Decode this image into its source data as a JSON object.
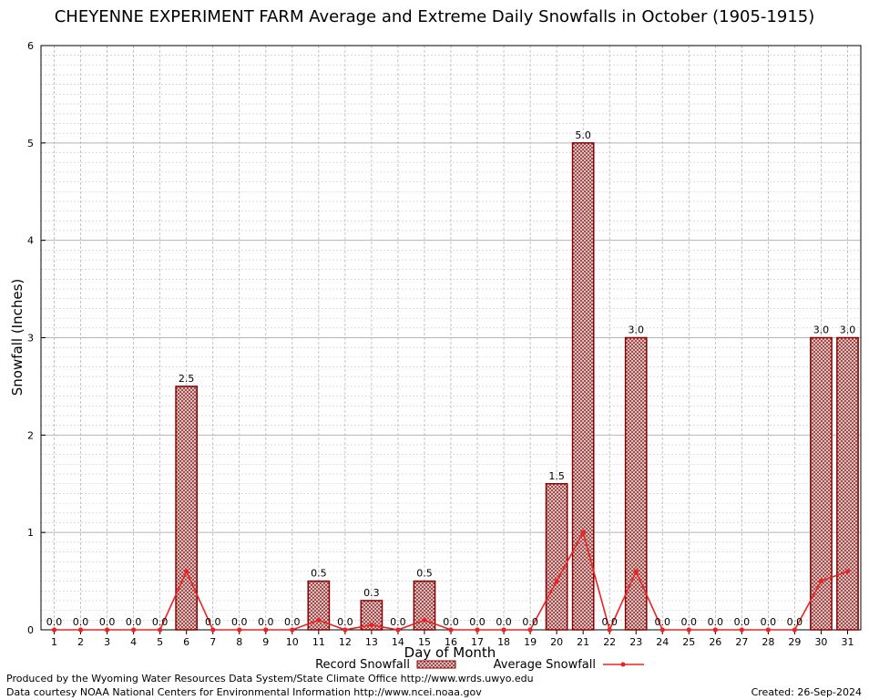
{
  "chart_data": {
    "type": "bar",
    "title": "CHEYENNE EXPERIMENT FARM Average and Extreme Daily Snowfalls in October (1905-1915)",
    "xlabel": "Day of Month",
    "ylabel": "Snowfall (Inches)",
    "ylim": [
      0,
      6
    ],
    "yticks": [
      0,
      1,
      2,
      3,
      4,
      5,
      6
    ],
    "grid": true,
    "legend_position": "bottom",
    "categories": [
      "1",
      "2",
      "3",
      "4",
      "5",
      "6",
      "7",
      "8",
      "9",
      "10",
      "11",
      "12",
      "13",
      "14",
      "15",
      "16",
      "17",
      "18",
      "19",
      "20",
      "21",
      "22",
      "23",
      "24",
      "25",
      "26",
      "27",
      "28",
      "29",
      "30",
      "31"
    ],
    "series": [
      {
        "name": "Record Snowfall",
        "kind": "bar",
        "color": "#8b0000",
        "values": [
          0,
          0,
          0,
          0,
          0,
          2.5,
          0,
          0,
          0,
          0,
          0.5,
          0,
          0.3,
          0,
          0.5,
          0,
          0,
          0,
          0,
          1.5,
          5.0,
          0,
          3.0,
          0,
          0,
          0,
          0,
          0,
          0,
          3.0,
          3.0
        ],
        "labels": [
          "0.0",
          "0.0",
          "0.0",
          "0.0",
          "0.0",
          "2.5",
          "0.0",
          "0.0",
          "0.0",
          "0.0",
          "0.5",
          "0.0",
          "0.3",
          "0.0",
          "0.5",
          "0.0",
          "0.0",
          "0.0",
          "0.0",
          "1.5",
          "5.0",
          "0.0",
          "3.0",
          "0.0",
          "0.0",
          "0.0",
          "0.0",
          "0.0",
          "0.0",
          "3.0",
          "3.0"
        ]
      },
      {
        "name": "Average Snowfall",
        "kind": "line",
        "color": "#ee2222",
        "values": [
          0,
          0,
          0,
          0,
          0,
          0.6,
          0,
          0,
          0,
          0,
          0.1,
          0,
          0.05,
          0,
          0.1,
          0,
          0,
          0,
          0,
          0.5,
          1.0,
          0,
          0.6,
          0,
          0,
          0,
          0,
          0,
          0,
          0.5,
          0.6
        ]
      }
    ]
  },
  "footer": {
    "line1": "Produced by the Wyoming Water Resources Data System/State Climate Office http://www.wrds.uwyo.edu",
    "line2": "Data courtesy NOAA National Centers for Environmental Information http://www.ncei.noaa.gov",
    "created": "Created:  26-Sep-2024"
  }
}
